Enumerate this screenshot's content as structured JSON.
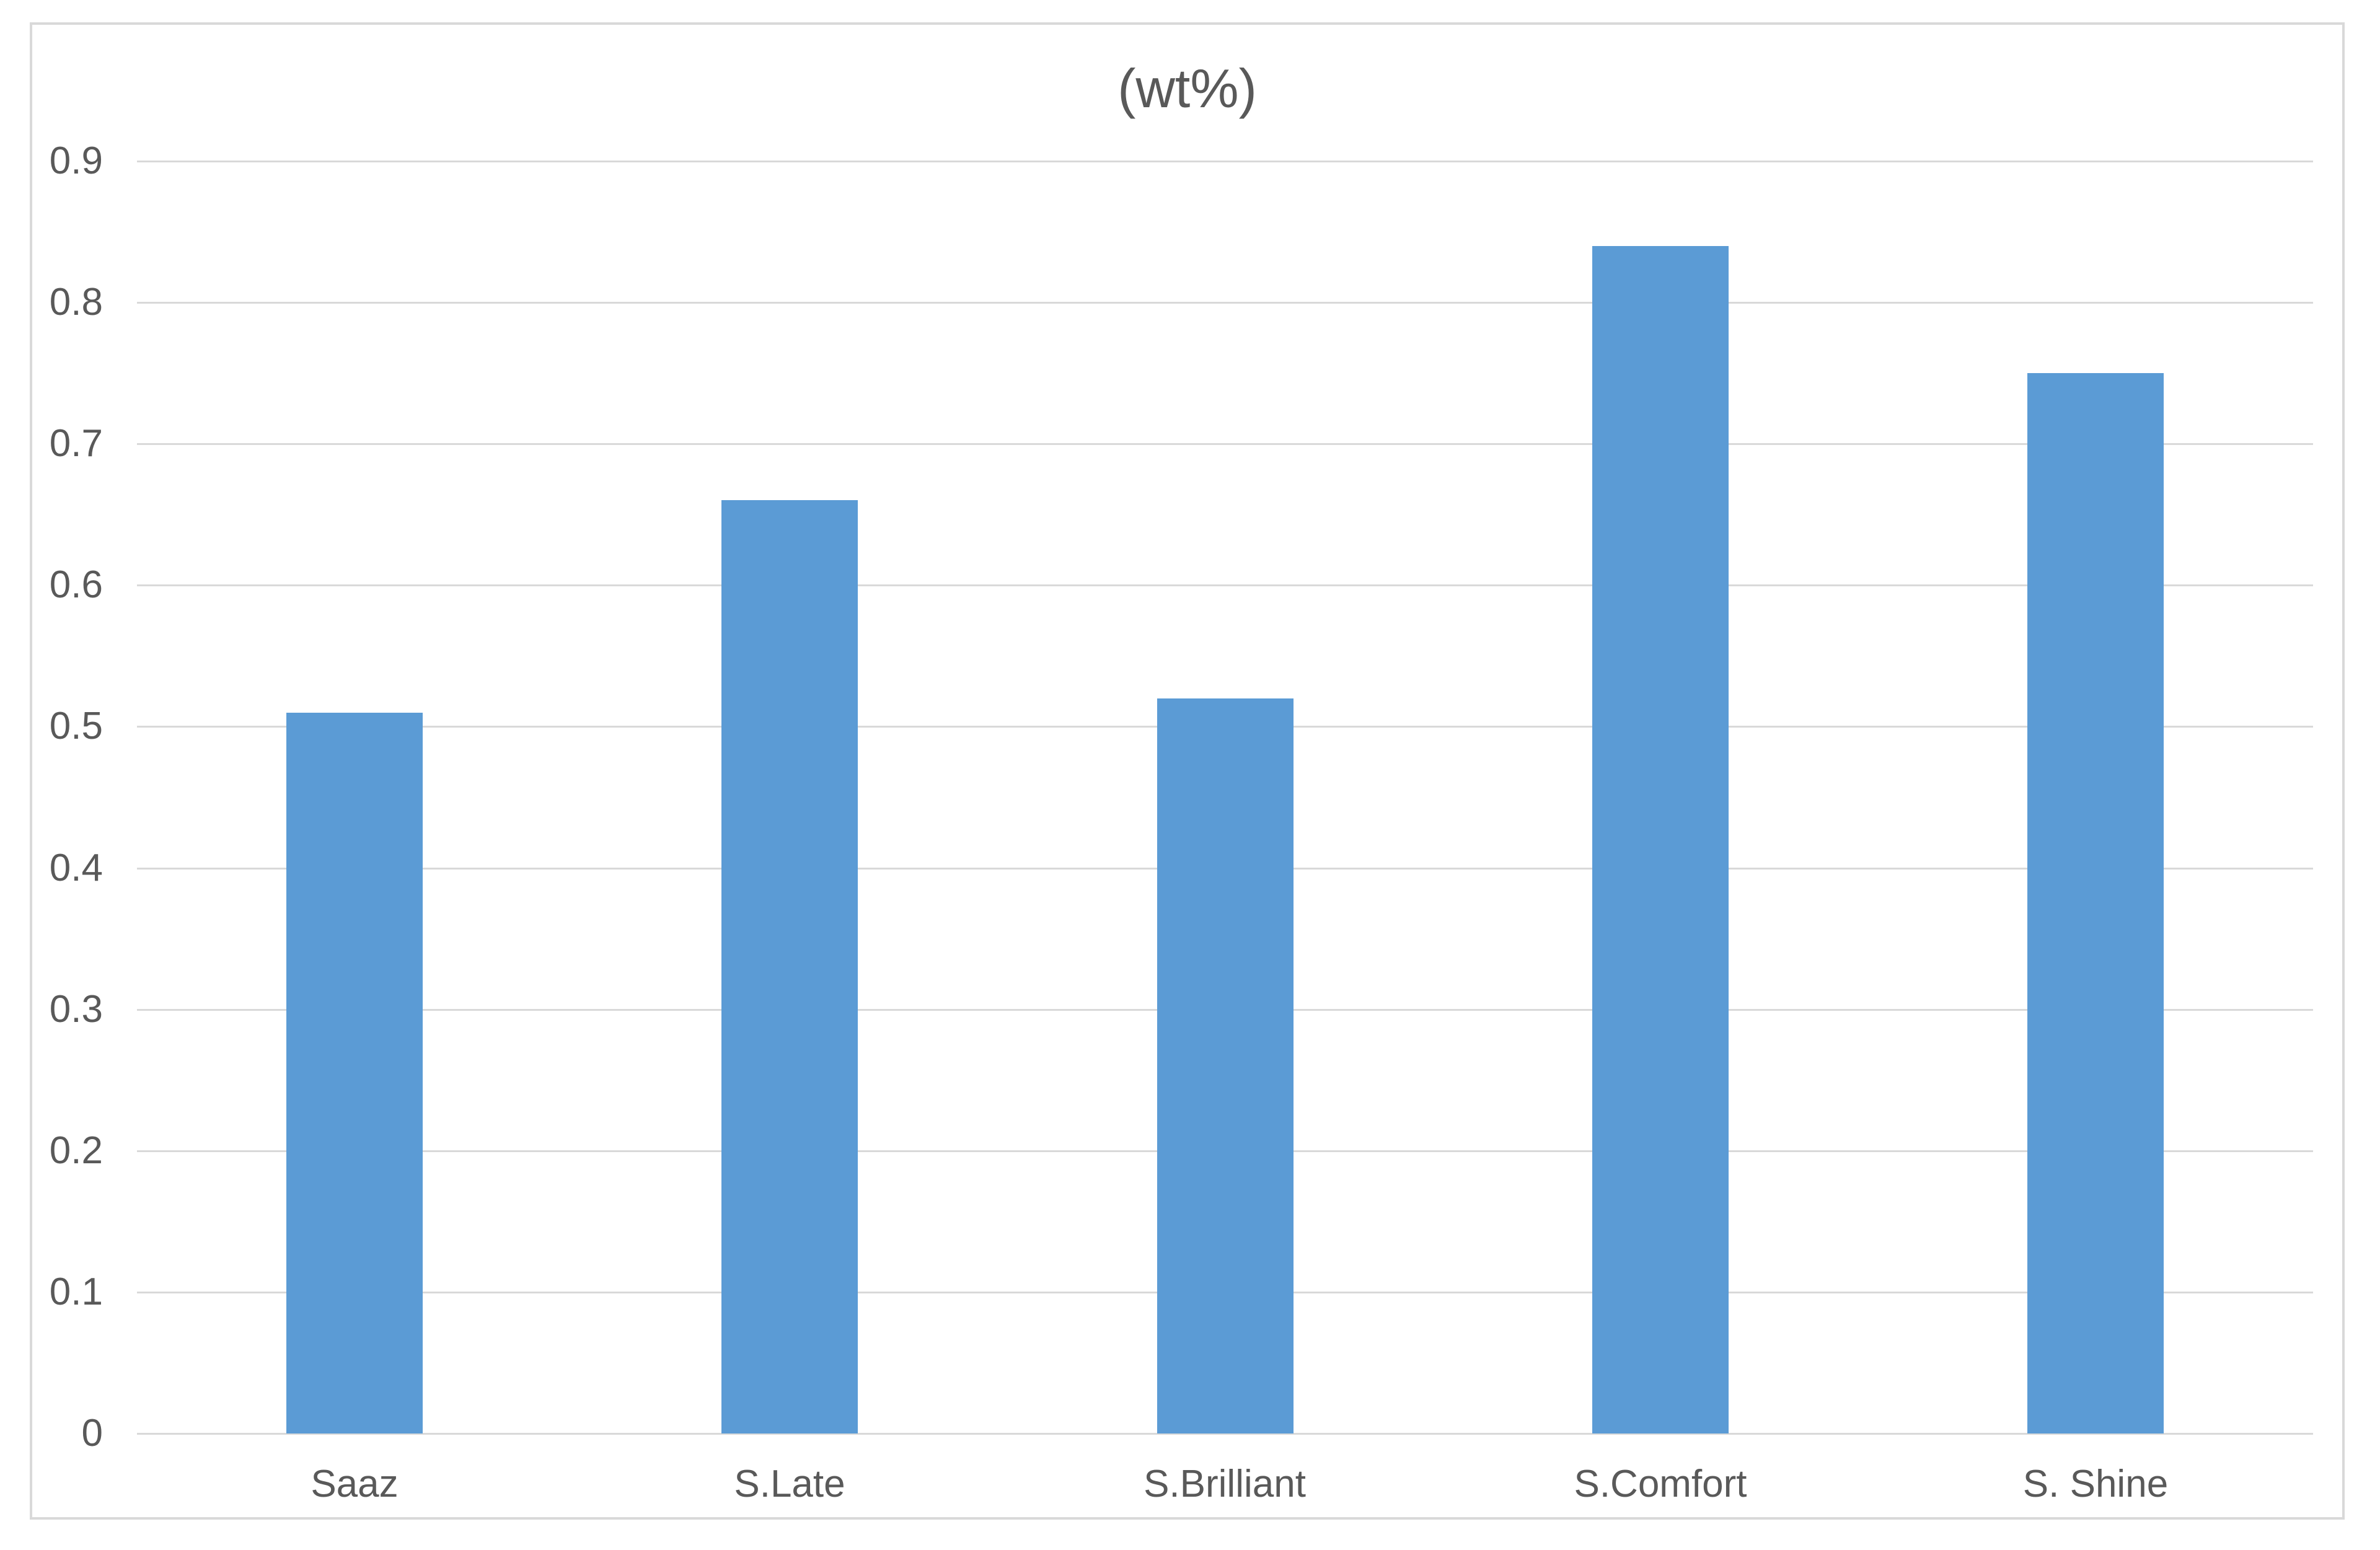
{
  "chart_data": {
    "type": "bar",
    "title": "(wt%)",
    "categories": [
      "Saaz",
      "S.Late",
      "S.Brilliant",
      "S.Comfort",
      "S. Shine"
    ],
    "values": [
      0.51,
      0.66,
      0.52,
      0.84,
      0.75
    ],
    "xlabel": "",
    "ylabel": "",
    "ylim": [
      0,
      0.9
    ],
    "ytick_step": 0.1,
    "ytick_labels": [
      "0",
      "0.1",
      "0.2",
      "0.3",
      "0.4",
      "0.5",
      "0.6",
      "0.7",
      "0.8",
      "0.9"
    ],
    "grid": true,
    "legend": "none",
    "colors": {
      "bar": "#5B9BD5",
      "gridline": "#D9D9D9",
      "axis_line": "#D9D9D9",
      "text": "#595959",
      "chart_border": "#D9D9D9",
      "background": "#FFFFFF"
    }
  }
}
